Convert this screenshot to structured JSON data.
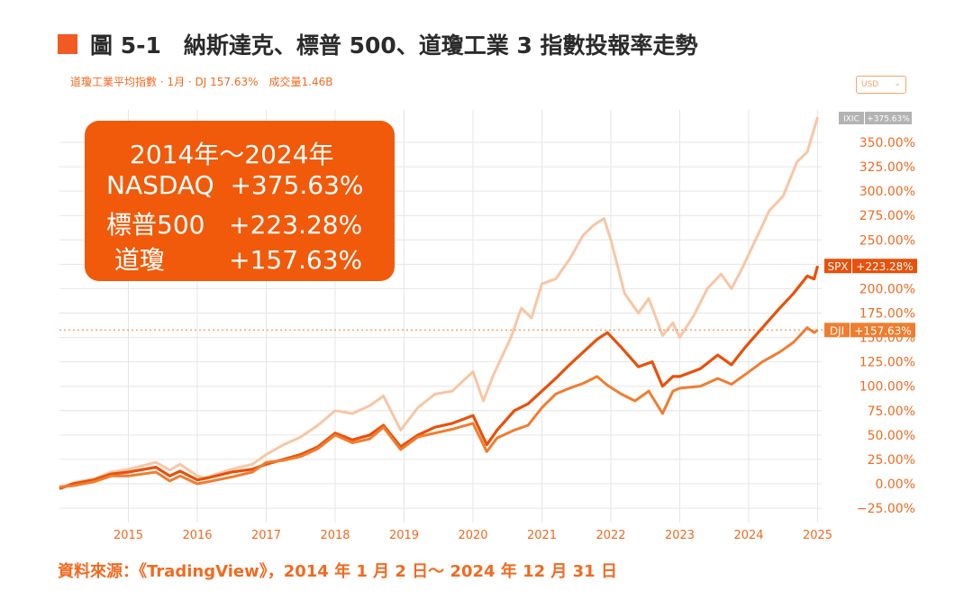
{
  "figure": {
    "title": "圖 5-1　納斯達克、標普 500、道瓊工業 3 指數投報率走勢",
    "subline": "道瓊工業平均指數 · 1月 · DJ 157.63%　成交量1.46B",
    "currency": "USD",
    "source": "資料來源：《TradingView》，2014 年 1 月 2 日～ 2024 年 12 月 31 日"
  },
  "callout": {
    "line1": "2014年～2024年",
    "line2": "NASDAQ  +375.63%",
    "line3": "標普500   +223.28%",
    "line4": " 道瓊        +157.63%"
  },
  "colors": {
    "ixic": "#f8c6a5",
    "spx": "#e8510a",
    "dji": "#f07d2f",
    "axis_text": "#f26a21",
    "grid": "#e6e6e6",
    "ixic_badge": "#b3b3b3"
  },
  "chart_data": {
    "type": "line",
    "ylabel": "",
    "xlabel": "",
    "x_ticks": [
      "2015",
      "2016",
      "2017",
      "2018",
      "2019",
      "2020",
      "2021",
      "2022",
      "2023",
      "2024",
      "2025"
    ],
    "y_ticks": [
      "350.00%",
      "325.00%",
      "300.00%",
      "275.00%",
      "250.00%",
      "225.00%",
      "200.00%",
      "175.00%",
      "150.00%",
      "125.00%",
      "100.00%",
      "75.00%",
      "50.00%",
      "25.00%",
      "0.00%",
      "−25.00%"
    ],
    "y_values": [
      350,
      325,
      300,
      275,
      250,
      225,
      200,
      175,
      150,
      125,
      100,
      75,
      50,
      25,
      0,
      -25
    ],
    "ylim": [
      -30,
      385
    ],
    "xlim": [
      2014.0,
      2025.25
    ],
    "series": [
      {
        "key": "ixic",
        "name": "IXIC",
        "label": "+375.63%",
        "final": 375.63,
        "points": [
          [
            2014.0,
            -5
          ],
          [
            2014.2,
            1
          ],
          [
            2014.5,
            5
          ],
          [
            2014.75,
            12
          ],
          [
            2015.0,
            15
          ],
          [
            2015.4,
            22
          ],
          [
            2015.6,
            14
          ],
          [
            2015.75,
            20
          ],
          [
            2016.0,
            8
          ],
          [
            2016.1,
            6
          ],
          [
            2016.5,
            15
          ],
          [
            2016.8,
            20
          ],
          [
            2017.0,
            30
          ],
          [
            2017.25,
            40
          ],
          [
            2017.5,
            48
          ],
          [
            2017.75,
            60
          ],
          [
            2018.0,
            75
          ],
          [
            2018.25,
            72
          ],
          [
            2018.5,
            80
          ],
          [
            2018.7,
            90
          ],
          [
            2018.95,
            55
          ],
          [
            2019.2,
            78
          ],
          [
            2019.45,
            92
          ],
          [
            2019.7,
            95
          ],
          [
            2020.0,
            115
          ],
          [
            2020.15,
            85
          ],
          [
            2020.3,
            112
          ],
          [
            2020.55,
            150
          ],
          [
            2020.7,
            180
          ],
          [
            2020.85,
            170
          ],
          [
            2021.0,
            205
          ],
          [
            2021.2,
            210
          ],
          [
            2021.4,
            230
          ],
          [
            2021.6,
            255
          ],
          [
            2021.75,
            265
          ],
          [
            2021.9,
            272
          ],
          [
            2022.0,
            250
          ],
          [
            2022.2,
            195
          ],
          [
            2022.4,
            175
          ],
          [
            2022.55,
            190
          ],
          [
            2022.75,
            152
          ],
          [
            2022.9,
            165
          ],
          [
            2023.0,
            150
          ],
          [
            2023.2,
            172
          ],
          [
            2023.4,
            200
          ],
          [
            2023.6,
            215
          ],
          [
            2023.75,
            200
          ],
          [
            2023.9,
            220
          ],
          [
            2024.1,
            250
          ],
          [
            2024.3,
            280
          ],
          [
            2024.5,
            295
          ],
          [
            2024.7,
            330
          ],
          [
            2024.85,
            340
          ],
          [
            2025.0,
            375.63
          ]
        ]
      },
      {
        "key": "spx",
        "name": "SPX",
        "label": "+223.28%",
        "final": 223.28,
        "points": [
          [
            2014.0,
            -5
          ],
          [
            2014.2,
            0
          ],
          [
            2014.5,
            4
          ],
          [
            2014.75,
            10
          ],
          [
            2015.0,
            12
          ],
          [
            2015.4,
            17
          ],
          [
            2015.6,
            8
          ],
          [
            2015.75,
            13
          ],
          [
            2016.0,
            4
          ],
          [
            2016.15,
            6
          ],
          [
            2016.5,
            12
          ],
          [
            2016.8,
            15
          ],
          [
            2017.0,
            20
          ],
          [
            2017.25,
            25
          ],
          [
            2017.5,
            30
          ],
          [
            2017.75,
            38
          ],
          [
            2018.0,
            52
          ],
          [
            2018.25,
            45
          ],
          [
            2018.5,
            50
          ],
          [
            2018.7,
            60
          ],
          [
            2018.95,
            38
          ],
          [
            2019.2,
            50
          ],
          [
            2019.45,
            58
          ],
          [
            2019.7,
            62
          ],
          [
            2020.0,
            70
          ],
          [
            2020.2,
            40
          ],
          [
            2020.35,
            55
          ],
          [
            2020.6,
            75
          ],
          [
            2020.8,
            82
          ],
          [
            2021.0,
            95
          ],
          [
            2021.2,
            108
          ],
          [
            2021.4,
            122
          ],
          [
            2021.6,
            135
          ],
          [
            2021.8,
            148
          ],
          [
            2021.95,
            155
          ],
          [
            2022.15,
            140
          ],
          [
            2022.4,
            120
          ],
          [
            2022.6,
            125
          ],
          [
            2022.75,
            100
          ],
          [
            2022.9,
            110
          ],
          [
            2023.0,
            110
          ],
          [
            2023.3,
            118
          ],
          [
            2023.55,
            132
          ],
          [
            2023.75,
            122
          ],
          [
            2023.95,
            140
          ],
          [
            2024.2,
            160
          ],
          [
            2024.45,
            180
          ],
          [
            2024.65,
            195
          ],
          [
            2024.85,
            213
          ],
          [
            2024.95,
            210
          ],
          [
            2025.0,
            223.28
          ]
        ]
      },
      {
        "key": "dji",
        "name": "DJI",
        "label": "+157.63%",
        "final": 157.63,
        "points": [
          [
            2014.0,
            -3
          ],
          [
            2014.2,
            -2
          ],
          [
            2014.5,
            2
          ],
          [
            2014.75,
            8
          ],
          [
            2015.0,
            8
          ],
          [
            2015.4,
            12
          ],
          [
            2015.6,
            3
          ],
          [
            2015.75,
            8
          ],
          [
            2016.0,
            0
          ],
          [
            2016.15,
            2
          ],
          [
            2016.5,
            7
          ],
          [
            2016.8,
            12
          ],
          [
            2017.0,
            22
          ],
          [
            2017.25,
            24
          ],
          [
            2017.5,
            28
          ],
          [
            2017.75,
            36
          ],
          [
            2018.0,
            50
          ],
          [
            2018.25,
            42
          ],
          [
            2018.5,
            46
          ],
          [
            2018.7,
            58
          ],
          [
            2018.95,
            35
          ],
          [
            2019.2,
            48
          ],
          [
            2019.45,
            52
          ],
          [
            2019.7,
            56
          ],
          [
            2020.0,
            62
          ],
          [
            2020.2,
            33
          ],
          [
            2020.35,
            47
          ],
          [
            2020.6,
            55
          ],
          [
            2020.8,
            60
          ],
          [
            2021.0,
            78
          ],
          [
            2021.2,
            92
          ],
          [
            2021.4,
            98
          ],
          [
            2021.6,
            103
          ],
          [
            2021.8,
            110
          ],
          [
            2021.95,
            101
          ],
          [
            2022.15,
            92
          ],
          [
            2022.35,
            85
          ],
          [
            2022.55,
            95
          ],
          [
            2022.75,
            72
          ],
          [
            2022.9,
            95
          ],
          [
            2023.0,
            98
          ],
          [
            2023.3,
            100
          ],
          [
            2023.55,
            108
          ],
          [
            2023.75,
            102
          ],
          [
            2023.95,
            112
          ],
          [
            2024.2,
            125
          ],
          [
            2024.45,
            135
          ],
          [
            2024.65,
            145
          ],
          [
            2024.85,
            160
          ],
          [
            2024.95,
            155
          ],
          [
            2025.0,
            157.63
          ]
        ]
      }
    ]
  }
}
